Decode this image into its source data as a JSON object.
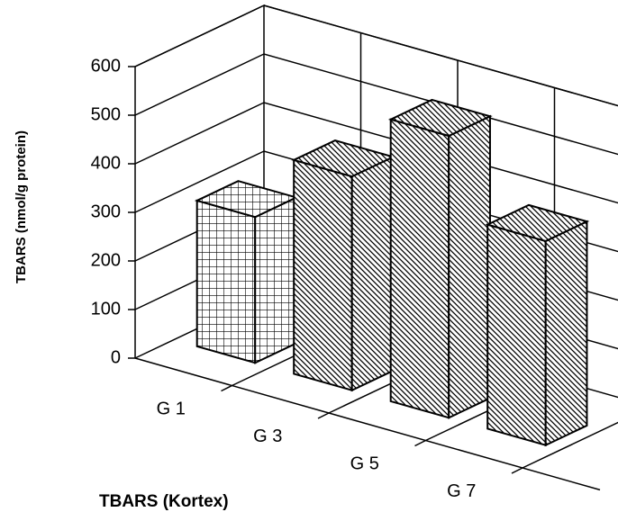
{
  "chart_data": {
    "type": "bar3d",
    "x_label": "TBARS (Kortex)",
    "y_label": "TBARS  (nmol/g  protein)",
    "categories": [
      "G 1",
      "G 3",
      "G 5",
      "G 7"
    ],
    "values": [
      300,
      440,
      580,
      420
    ],
    "patterns": [
      "cross",
      "diagonal",
      "diagonal",
      "diagonal"
    ],
    "ylim": [
      0,
      600
    ],
    "yticks": [
      0,
      100,
      200,
      300,
      400,
      500,
      600
    ],
    "grid": true
  }
}
